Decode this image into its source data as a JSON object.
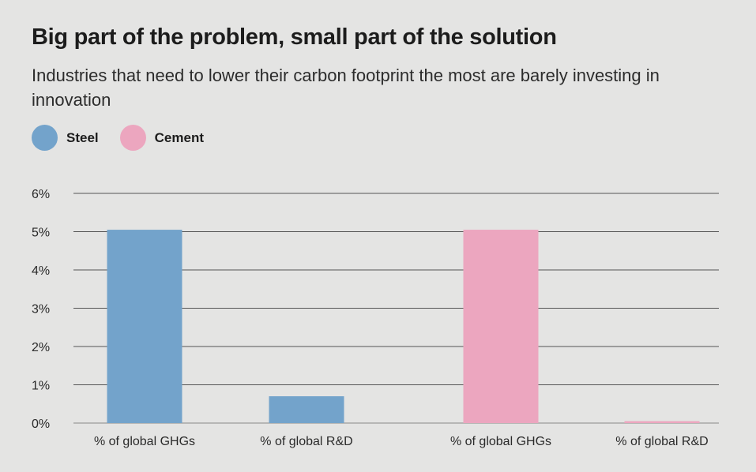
{
  "chart_data": {
    "type": "bar",
    "title": "Big part of the problem, small part of the solution",
    "subtitle": "Industries that need to lower their carbon footprint the most are barely investing in innovation",
    "xlabel": "",
    "ylabel": "",
    "ylim": [
      0,
      6
    ],
    "yticks": [
      0,
      1,
      2,
      3,
      4,
      5,
      6
    ],
    "ytick_labels": [
      "0%",
      "1%",
      "2%",
      "3%",
      "4%",
      "5%",
      "6%"
    ],
    "grid": true,
    "legend_position": "top-left",
    "legend": [
      {
        "name": "Steel",
        "color": "#73a3cb"
      },
      {
        "name": "Cement",
        "color": "#eca6bf"
      }
    ],
    "bars": [
      {
        "series": "Steel",
        "category": "% of global GHGs",
        "value": 5.05
      },
      {
        "series": "Steel",
        "category": "% of global R&D",
        "value": 0.7
      },
      {
        "series": "Cement",
        "category": "% of global GHGs",
        "value": 5.05
      },
      {
        "series": "Cement",
        "category": "% of global R&D",
        "value": 0.05
      }
    ]
  }
}
